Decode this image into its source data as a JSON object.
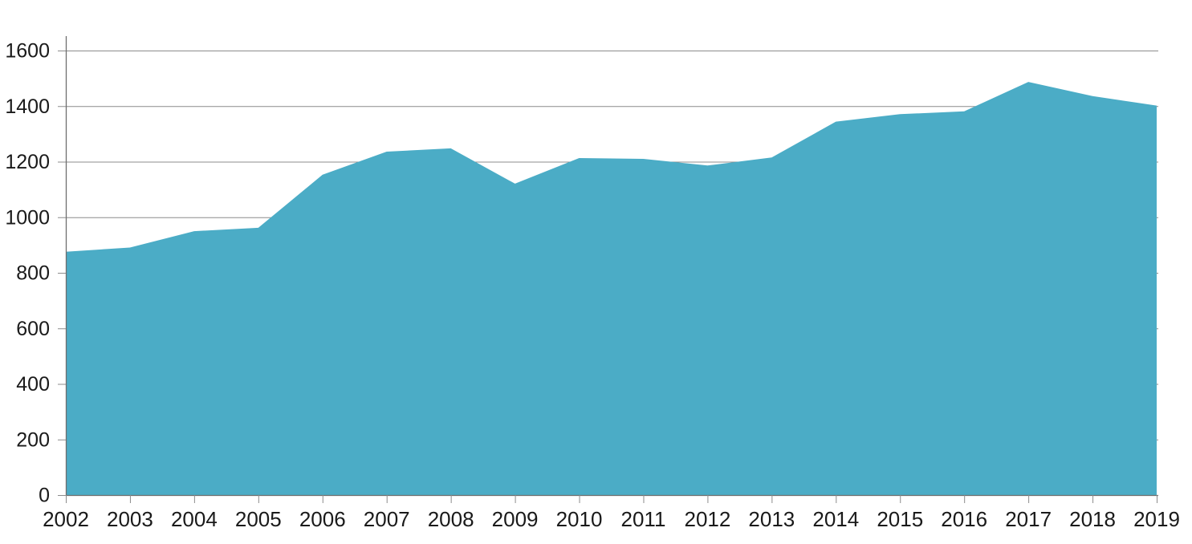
{
  "chart_data": {
    "type": "area",
    "title": "",
    "xlabel": "",
    "ylabel": "",
    "x": [
      2002,
      2003,
      2004,
      2005,
      2006,
      2007,
      2008,
      2009,
      2010,
      2011,
      2012,
      2013,
      2014,
      2015,
      2016,
      2017,
      2018,
      2019
    ],
    "series": [
      {
        "name": "value",
        "values": [
          876,
          891,
          950,
          962,
          1153,
          1236,
          1248,
          1121,
          1213,
          1210,
          1186,
          1215,
          1344,
          1371,
          1381,
          1487,
          1436,
          1402
        ]
      }
    ],
    "ylim": [
      0,
      1600
    ],
    "yticks": [
      0,
      200,
      400,
      600,
      800,
      1000,
      1200,
      1400,
      1600
    ],
    "grid": true,
    "legend": "none",
    "colors": {
      "area_fill": "#4BACC6",
      "gridline": "#8C8C8C",
      "axis_line": "#6E6E6E",
      "tick": "#8C8C8C",
      "label_text": "#1A1A1A",
      "background": "#FFFFFF"
    }
  }
}
